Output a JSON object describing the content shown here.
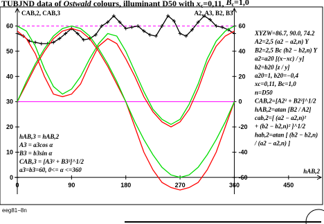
{
  "title": "TUBJND data of Ostwald colours, illuminant D50 with xc=0,11, Bc=1,0",
  "footer_code": "eeg81−8n",
  "left_axis_title": "CAB,2, CAB,3",
  "right_axis_title": "A2, A3, B2, B3",
  "x_axis_title": "hAB,2",
  "left_formulas": [
    "hAB,3 = hAB,2",
    "A3 = a3cos α",
    "B3 = b3sin α",
    "CAB,3 = [A3² + B3²]^1/2",
    "a3=b3=60, 0<= α <=360"
  ],
  "right_formulas": [
    "XYZW=86.7, 90.0, 74.2",
    "A2=2,5 (a2 − a2,n) Y",
    "B2=2,5 Bc (b2 − b2,n) Y",
    "a2=a20 [(x−xc) / y]",
    "b2=b20 [z / y]",
    "a20=1, b20=−0,4",
    "xc=0,11, Bc=1,0",
    "n=D50",
    "CAB,2=[A2² + B2²]^1/2",
    "hAB,2=atan [B2 / A2]",
    "cab,2=[ (a2 − a2,n)²",
    "+ (b2 − b2,n)² ]^1/2",
    "hab,2=atan [ (b2 − b2,n)",
    "/ (a2 − a2,n) ]"
  ],
  "chart_data": {
    "type": "line",
    "xlim": [
      0,
      495
    ],
    "ylim": [
      -5,
      67
    ],
    "x_ticks": [
      0,
      90,
      180,
      270,
      360,
      450
    ],
    "left_y_ticks": [
      0,
      10,
      20,
      30,
      40,
      50,
      60
    ],
    "right_y_ticks": [
      -60,
      -40,
      -20,
      0,
      20,
      40,
      60
    ],
    "grid": false,
    "series": [
      {
        "color": "#000000",
        "marker": "plus",
        "x": [
          0,
          10,
          20,
          30,
          40,
          50,
          60,
          70,
          80,
          90,
          100,
          110,
          120,
          130,
          140,
          150,
          160,
          170,
          180,
          190,
          200,
          210,
          220,
          230,
          240,
          250,
          260,
          270,
          280,
          290,
          300,
          310,
          320,
          330,
          340,
          350,
          360
        ],
        "y": [
          57,
          56,
          54,
          53.5,
          53,
          53,
          53.5,
          55,
          57,
          59,
          57,
          54.5,
          55,
          56.5,
          60,
          61.5,
          64,
          61.5,
          59,
          59.5,
          60,
          58,
          56.5,
          56,
          60,
          64,
          62,
          57,
          56,
          58.5,
          61.5,
          64,
          62.5,
          60,
          59.5,
          58.5,
          57
        ]
      },
      {
        "color": "#ff0000",
        "x": [
          0,
          15,
          30,
          45,
          60,
          75,
          90,
          105,
          120,
          135,
          150,
          165,
          180,
          195,
          210,
          225,
          240,
          255,
          270,
          285,
          300,
          315,
          330,
          345,
          360
        ],
        "y": [
          58,
          55,
          49,
          40,
          33,
          32,
          33,
          37,
          45,
          52,
          55,
          53,
          47,
          40,
          32,
          26,
          22,
          20,
          22,
          27,
          35,
          45,
          52,
          56,
          58
        ]
      },
      {
        "color": "#00dd00",
        "x": [
          0,
          15,
          30,
          45,
          60,
          75,
          90,
          105,
          120,
          135,
          150,
          165,
          180,
          195,
          210,
          225,
          240,
          255,
          270,
          285,
          300,
          315,
          330,
          345,
          360
        ],
        "y": [
          60,
          58,
          52,
          43,
          36,
          33,
          35,
          40,
          47,
          53,
          57,
          56,
          50,
          42,
          34,
          27,
          23,
          21,
          23,
          29,
          37,
          47,
          54,
          58,
          60
        ]
      },
      {
        "color": "#ff0000",
        "x": [
          0,
          15,
          30,
          45,
          60,
          75,
          90,
          105,
          120,
          135,
          150,
          165,
          180,
          195,
          210,
          225,
          240,
          255,
          270,
          285,
          300,
          315,
          330,
          345,
          360
        ],
        "y": [
          30,
          37,
          44,
          50,
          55,
          58,
          59,
          58,
          55,
          50,
          44,
          37,
          30,
          20,
          10,
          3,
          -2,
          -4,
          -5,
          -4,
          -2,
          3,
          10,
          20,
          30
        ]
      },
      {
        "color": "#00dd00",
        "x": [
          0,
          15,
          30,
          45,
          60,
          75,
          90,
          105,
          120,
          135,
          150,
          165,
          180,
          195,
          210,
          225,
          240,
          255,
          270,
          285,
          300,
          315,
          330,
          345,
          360
        ],
        "y": [
          30,
          38,
          45,
          51,
          56,
          59,
          60,
          59,
          56,
          51,
          45,
          38,
          30,
          22,
          15,
          9,
          4,
          1,
          0,
          1,
          4,
          9,
          15,
          22,
          30
        ]
      }
    ],
    "reference_lines": [
      {
        "color": "#ff00ff",
        "style": "dashed",
        "y": 60
      },
      {
        "color": "#ff00ff",
        "style": "solid",
        "y": 30
      }
    ]
  }
}
